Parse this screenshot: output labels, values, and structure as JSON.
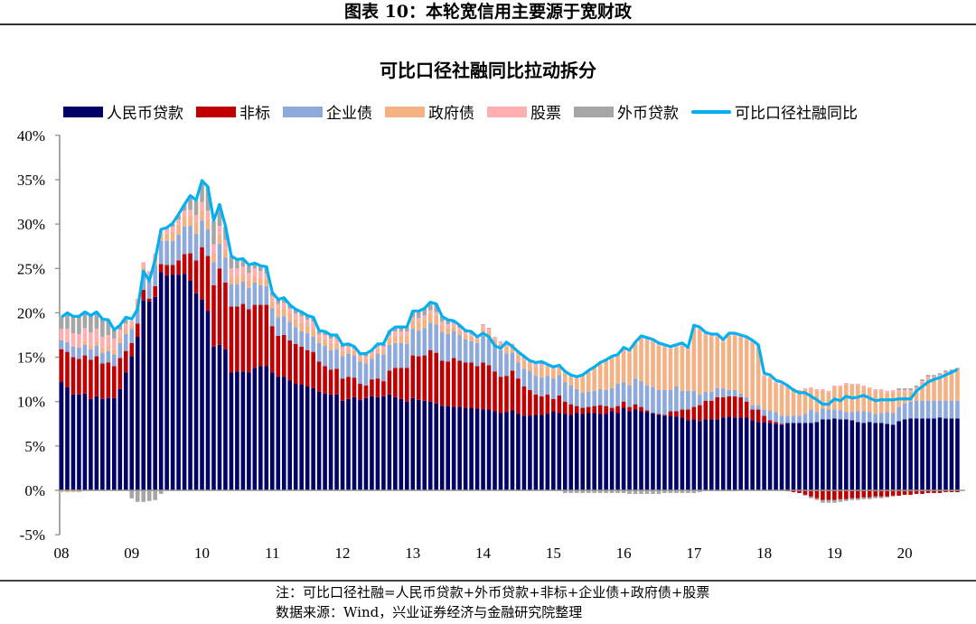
{
  "figure_title": "图表 10：本轮宽信用主要源于宽财政",
  "note": "注：可比口径社融=人民币贷款+外币贷款+非标+企业债+政府债+股票",
  "source": "数据来源：Wind，兴业证券经济与金融研究院整理",
  "chart_data": {
    "type": "bar",
    "stacked": true,
    "title": "可比口径社融同比拉动拆分",
    "xlabel": "",
    "ylabel": "",
    "ylim": [
      -5,
      40
    ],
    "yticks": [
      "-5%",
      "0%",
      "5%",
      "10%",
      "15%",
      "20%",
      "25%",
      "30%",
      "35%",
      "40%"
    ],
    "xticks": [
      "08",
      "09",
      "10",
      "11",
      "12",
      "13",
      "14",
      "15",
      "16",
      "17",
      "18",
      "19",
      "20"
    ],
    "grid": false,
    "legend": "top",
    "series": [
      {
        "name": "人民币贷款",
        "kind": "bar",
        "color": "#000066",
        "values": [
          12.2,
          11.6,
          10.8,
          10.8,
          10.9,
          10.3,
          10.6,
          10.3,
          10.4,
          10.4,
          11.4,
          13.3,
          15.1,
          17.3,
          21.4,
          21.3,
          21.8,
          24.6,
          24.2,
          24.3,
          24.3,
          24.4,
          23.6,
          22.2,
          21.5,
          20.2,
          16.2,
          16.4,
          15.9,
          13.3,
          13.4,
          13.4,
          13.3,
          13.8,
          14.0,
          14.0,
          13.3,
          12.8,
          12.8,
          12.4,
          12.0,
          11.9,
          11.7,
          11.5,
          11.1,
          10.9,
          10.8,
          10.8,
          10.1,
          10.3,
          10.5,
          10.2,
          10.4,
          10.6,
          10.5,
          10.6,
          10.8,
          10.5,
          10.3,
          10.0,
          10.4,
          10.2,
          10.1,
          10.0,
          9.8,
          9.5,
          9.5,
          9.4,
          9.4,
          9.3,
          9.3,
          9.2,
          9.1,
          9.1,
          8.9,
          8.7,
          8.8,
          9.0,
          8.6,
          8.4,
          8.4,
          8.5,
          8.5,
          8.6,
          8.9,
          8.7,
          8.6,
          8.5,
          8.7,
          8.6,
          8.7,
          8.7,
          8.6,
          8.6,
          8.9,
          8.7,
          9.3,
          8.9,
          9.1,
          8.9,
          8.8,
          8.7,
          8.5,
          8.4,
          8.4,
          8.3,
          8.2,
          7.9,
          8.0,
          7.8,
          8.0,
          8.0,
          8.0,
          8.2,
          8.3,
          8.2,
          8.2,
          8.2,
          7.9,
          7.7,
          7.7,
          7.6,
          7.5,
          7.4,
          7.6,
          7.6,
          7.6,
          7.6,
          7.6,
          7.7,
          8.0,
          8.0,
          8.1,
          8.0,
          8.0,
          7.9,
          7.7,
          7.6,
          7.7,
          7.6,
          7.6,
          7.5,
          7.4,
          7.8,
          8.0,
          8.1,
          8.1,
          8.1,
          8.1,
          8.1,
          8.2,
          8.1,
          8.1,
          8.1
        ]
      },
      {
        "name": "非标",
        "kind": "bar",
        "color": "#C00000",
        "values": [
          3.7,
          4.0,
          4.2,
          4.0,
          4.3,
          4.4,
          4.5,
          4.0,
          4.0,
          3.6,
          3.5,
          2.4,
          1.5,
          1.5,
          1.2,
          0.3,
          1.2,
          0.9,
          1.2,
          1.1,
          1.6,
          2.2,
          3.1,
          3.7,
          5.9,
          6.2,
          6.9,
          8.6,
          7.5,
          7.4,
          7.3,
          7.6,
          7.1,
          7.1,
          6.9,
          6.9,
          5.2,
          4.6,
          4.7,
          4.5,
          4.5,
          4.3,
          4.1,
          4.1,
          3.4,
          3.1,
          2.8,
          2.9,
          2.5,
          2.5,
          2.2,
          1.8,
          1.4,
          1.9,
          2.1,
          1.7,
          2.7,
          3.3,
          3.5,
          3.8,
          4.8,
          4.9,
          5.1,
          5.8,
          5.7,
          5.1,
          5.0,
          5.5,
          5.2,
          5.1,
          5.1,
          4.8,
          5.3,
          5.0,
          4.5,
          4.1,
          4.1,
          4.5,
          4.0,
          3.3,
          2.9,
          2.3,
          2.1,
          2.2,
          1.4,
          2.0,
          1.4,
          1.2,
          0.8,
          0.7,
          0.7,
          0.8,
          1.0,
          0.9,
          0.4,
          0.8,
          0.7,
          0.5,
          0.6,
          0.5,
          0.2,
          0,
          0.1,
          0.1,
          0.5,
          0.6,
          0.9,
          1.2,
          1.4,
          1.8,
          2.1,
          2.1,
          2.5,
          2.3,
          2.3,
          2.4,
          2.3,
          1.8,
          1.2,
          1.4,
          0.7,
          0.3,
          0.2,
          0.1,
          -0.1,
          -0.2,
          -0.3,
          -0.5,
          -0.7,
          -0.9,
          -1.1,
          -1.1,
          -1.1,
          -1.0,
          -1.0,
          -0.9,
          -0.9,
          -0.8,
          -0.8,
          -0.7,
          -0.7,
          -0.7,
          -0.6,
          -0.6,
          -0.5,
          -0.5,
          -0.4,
          -0.4,
          -0.3,
          -0.3,
          -0.3,
          -0.2,
          -0.2,
          -0.2
        ]
      },
      {
        "name": "企业债",
        "kind": "bar",
        "color": "#8EA9DB",
        "values": [
          1.0,
          1.1,
          1.2,
          1.3,
          1.2,
          1.2,
          1.2,
          1.2,
          1.3,
          1.3,
          1.7,
          1.9,
          1.6,
          1.6,
          1.9,
          1.9,
          2.4,
          2.6,
          2.7,
          2.7,
          2.9,
          3.1,
          3.1,
          3.0,
          3.0,
          3.0,
          2.6,
          2.8,
          2.8,
          2.5,
          2.5,
          2.5,
          2.4,
          2.5,
          2.2,
          2.1,
          2.0,
          2.1,
          2.1,
          2.1,
          1.9,
          1.7,
          1.9,
          1.7,
          2.1,
          2.3,
          2.2,
          2.2,
          2.5,
          2.6,
          2.5,
          2.5,
          2.5,
          2.3,
          2.8,
          3.0,
          2.9,
          2.8,
          2.8,
          2.7,
          3.0,
          2.9,
          3.1,
          3.1,
          3.2,
          3.2,
          3.1,
          3.0,
          2.9,
          2.6,
          2.4,
          2.6,
          3.0,
          3.0,
          2.9,
          3.0,
          2.5,
          2.0,
          1.8,
          2.0,
          2.2,
          2.1,
          2.1,
          2.1,
          2.3,
          2.3,
          2.2,
          2.1,
          1.9,
          1.7,
          1.7,
          1.7,
          1.8,
          1.8,
          2.2,
          2.5,
          2.2,
          2.4,
          2.9,
          2.9,
          2.8,
          2.9,
          2.7,
          2.8,
          2.4,
          2.8,
          2.1,
          2.1,
          1.8,
          1.2,
          1.0,
          1.0,
          1.0,
          1.0,
          0.7,
          0.7,
          0.4,
          0.5,
          0.5,
          0.5,
          0.7,
          1.1,
          1.1,
          0.9,
          0.8,
          0.8,
          0.8,
          1.0,
          1.5,
          1.1,
          1.2,
          1.1,
          1.0,
          1.0,
          0.8,
          0.9,
          1.2,
          1.3,
          1.1,
          1.0,
          1.1,
          1.3,
          1.3,
          1.6,
          1.8,
          1.9,
          2.0,
          2.0,
          2.0,
          2.0,
          1.9,
          2.0,
          2.0,
          2.0
        ]
      },
      {
        "name": "政府债",
        "kind": "bar",
        "color": "#F4B183",
        "values": [
          -0.2,
          -0.2,
          -0.2,
          -0.2,
          0.4,
          0.5,
          0.5,
          0.5,
          0.6,
          0.6,
          0.6,
          0.6,
          0.5,
          0.6,
          0.6,
          0.7,
          0.8,
          0.8,
          0.8,
          1.0,
          1.1,
          1.2,
          1.2,
          1.3,
          1.2,
          1.2,
          1.0,
          1.0,
          1.0,
          0.8,
          0.8,
          0.8,
          0.8,
          0.8,
          0.8,
          0.7,
          0.8,
          0.9,
          0.9,
          0.9,
          0.9,
          1.0,
          0.9,
          1.0,
          0.6,
          0.7,
          0.8,
          0.7,
          0.6,
          0.5,
          0.5,
          0.4,
          0.5,
          0.5,
          0.5,
          0.5,
          0.7,
          0.8,
          0.8,
          0.9,
          0.9,
          1.0,
          1.0,
          1.0,
          1.0,
          0.8,
          0.7,
          0.6,
          0.5,
          0.5,
          0.5,
          0.4,
          0.8,
          0.8,
          0.7,
          0.7,
          0.8,
          0.7,
          0.8,
          0.9,
          0.8,
          1.0,
          1.2,
          1.0,
          1.1,
          0.9,
          1.0,
          1.0,
          1.2,
          1.8,
          2.2,
          2.5,
          2.8,
          3.2,
          3.4,
          3.1,
          3.6,
          3.7,
          3.8,
          4.8,
          5.1,
          5.1,
          5.0,
          4.8,
          4.6,
          4.4,
          5.1,
          4.6,
          7.1,
          7.3,
          6.4,
          6.2,
          5.8,
          5.2,
          6.1,
          6.1,
          6.3,
          6.5,
          7.0,
          6.5,
          3.7,
          3.6,
          3.2,
          3.4,
          3.1,
          2.9,
          2.7,
          2.7,
          2.3,
          2.4,
          2.0,
          1.9,
          2.5,
          2.6,
          3.1,
          3.0,
          2.9,
          2.7,
          2.6,
          2.6,
          2.5,
          2.2,
          2.4,
          1.7,
          1.3,
          1.1,
          1.3,
          2.0,
          2.5,
          2.5,
          2.7,
          3.0,
          3.1,
          3.3
        ]
      },
      {
        "name": "股票",
        "kind": "bar",
        "color": "#FFAFB0",
        "values": [
          1.3,
          1.5,
          1.5,
          1.5,
          1.5,
          1.4,
          1.4,
          1.3,
          1.2,
          1.2,
          0.9,
          0.6,
          0.4,
          0.6,
          0.6,
          0.5,
          0.5,
          0.4,
          0.5,
          0.6,
          0.6,
          0.6,
          0.6,
          0.8,
          0.9,
          0.9,
          1.0,
          1.0,
          1.0,
          1.0,
          1.0,
          0.9,
          0.9,
          0.8,
          0.8,
          0.7,
          0.6,
          0.6,
          0.6,
          0.6,
          0.6,
          0.7,
          0.6,
          0.7,
          0.4,
          0.5,
          0.5,
          0.5,
          0.4,
          0.3,
          0.3,
          0.3,
          0.3,
          0.3,
          0.3,
          0.4,
          0.4,
          0.5,
          0.5,
          0.5,
          0.4,
          0.4,
          0.4,
          0.4,
          0.4,
          0.4,
          0.4,
          0.3,
          0.3,
          0.3,
          0.3,
          0.2,
          0.4,
          0.3,
          0.3,
          0.3,
          0.3,
          0.2,
          0.3,
          0.3,
          0.2,
          0.3,
          0.3,
          0.2,
          0.2,
          0.2,
          0.2,
          0.2,
          0.2,
          0.2,
          0.2,
          0.2,
          0.2,
          0.2,
          0.2,
          0.2,
          0.3,
          0.3,
          0.3,
          0.3,
          0.3,
          0.3,
          0.3,
          0.3,
          0.3,
          0.3,
          0.3,
          0.3,
          0.3,
          0.3,
          0.3,
          0.3,
          0.3,
          0.3,
          0.3,
          0.3,
          0.3,
          0.3,
          0.3,
          0.3,
          0.2,
          0.2,
          0.2,
          0.2,
          0.2,
          0.2,
          0.2,
          0.2,
          0.2,
          0.2,
          0.2,
          0.2,
          0.2,
          0.2,
          0.2,
          0.2,
          0.2,
          0.2,
          0.2,
          0.2,
          0.2,
          0.2,
          0.2,
          0.2,
          0.2,
          0.2,
          0.2,
          0.2,
          0.2,
          0.2,
          0.2,
          0.2,
          0.2,
          0.2
        ]
      },
      {
        "name": "外币贷款",
        "kind": "bar",
        "color": "#A6A6A6",
        "values": [
          1.3,
          1.8,
          1.9,
          2.0,
          1.8,
          1.9,
          1.9,
          2.0,
          1.7,
          1.0,
          0.5,
          0.7,
          -0.9,
          -1.3,
          -1.3,
          -1.2,
          -1.1,
          -0.4,
          0.1,
          0.3,
          0.5,
          0.7,
          1.6,
          1.6,
          2.3,
          2.7,
          2.6,
          2.4,
          1.5,
          1.4,
          0.9,
          0.8,
          0.8,
          0.6,
          0.6,
          0.8,
          0.4,
          0.5,
          0.6,
          0.4,
          0.5,
          0.5,
          0.5,
          0.5,
          0.4,
          0.4,
          0.4,
          0.4,
          0.3,
          0.3,
          0.2,
          0.2,
          0.3,
          0.2,
          0.3,
          0.3,
          0.4,
          0.5,
          0.5,
          0.5,
          0.7,
          0.8,
          0.8,
          0.9,
          0.9,
          0.6,
          0.5,
          0.3,
          0.3,
          0.2,
          0.3,
          0.1,
          0.1,
          0.1,
          0,
          0,
          0.2,
          0.1,
          0.1,
          0.2,
          0.1,
          0.2,
          0.3,
          0.1,
          0,
          0,
          -0.3,
          -0.3,
          -0.3,
          -0.3,
          -0.3,
          -0.3,
          -0.3,
          -0.3,
          -0.3,
          -0.3,
          -0.3,
          -0.4,
          -0.4,
          -0.4,
          -0.4,
          -0.4,
          -0.4,
          -0.3,
          -0.3,
          -0.3,
          -0.3,
          -0.3,
          -0.3,
          -0.2,
          -0.1,
          -0.1,
          -0.1,
          -0.1,
          -0.1,
          -0.1,
          0,
          0,
          0,
          0,
          0,
          0,
          0,
          0,
          0,
          0,
          0,
          -0.1,
          -0.2,
          -0.2,
          -0.3,
          -0.3,
          -0.3,
          -0.3,
          -0.2,
          -0.2,
          -0.2,
          -0.2,
          -0.2,
          -0.2,
          -0.2,
          -0.1,
          -0.1,
          0.2,
          0.2,
          0.2,
          0.2,
          0.2,
          0.2,
          0.2,
          0.2,
          0.2,
          0.2,
          0.2
        ]
      },
      {
        "name": "可比口径社融同比",
        "kind": "line",
        "color": "#00B0F0",
        "values": [
          19.5,
          20.0,
          19.6,
          19.6,
          20.1,
          19.7,
          20.1,
          19.3,
          19.2,
          18.1,
          18.6,
          19.5,
          19.3,
          20.4,
          24.7,
          23.6,
          26.0,
          29.4,
          29.6,
          30.1,
          31.1,
          32.2,
          33.2,
          32.7,
          34.9,
          34.2,
          30.4,
          32.2,
          29.8,
          26.4,
          26.0,
          26.1,
          25.4,
          25.6,
          25.3,
          25.2,
          22.3,
          21.5,
          21.7,
          20.9,
          20.4,
          20.1,
          19.7,
          19.5,
          18.0,
          17.9,
          17.5,
          17.5,
          16.4,
          16.5,
          16.2,
          15.4,
          15.4,
          15.8,
          16.5,
          16.5,
          17.9,
          18.4,
          18.4,
          18.4,
          20.2,
          20.2,
          20.5,
          21.2,
          21.0,
          19.6,
          19.2,
          19.1,
          18.6,
          18.0,
          17.9,
          17.3,
          17.7,
          17.3,
          16.3,
          16.0,
          16.7,
          16.2,
          15.6,
          15.1,
          14.6,
          14.4,
          14.5,
          14.2,
          13.9,
          14.1,
          13.4,
          13.0,
          12.8,
          13.0,
          13.5,
          13.9,
          14.4,
          14.7,
          15.1,
          15.3,
          16.1,
          15.8,
          16.7,
          17.4,
          17.2,
          17.0,
          16.6,
          16.4,
          16.2,
          16.4,
          16.6,
          16.1,
          18.6,
          18.4,
          17.8,
          17.6,
          17.6,
          17.0,
          17.7,
          17.7,
          17.5,
          17.3,
          16.9,
          16.4,
          13.2,
          13.0,
          12.4,
          12.2,
          11.8,
          11.3,
          11.0,
          11.0,
          10.6,
          10.2,
          9.7,
          9.7,
          10.3,
          10.1,
          10.6,
          10.4,
          10.5,
          10.7,
          10.4,
          10.1,
          10.2,
          10.2,
          10.2,
          10.3,
          10.3,
          10.3,
          11.2,
          11.7,
          12.2,
          12.5,
          12.7,
          13.0,
          13.3,
          13.6
        ]
      }
    ]
  }
}
